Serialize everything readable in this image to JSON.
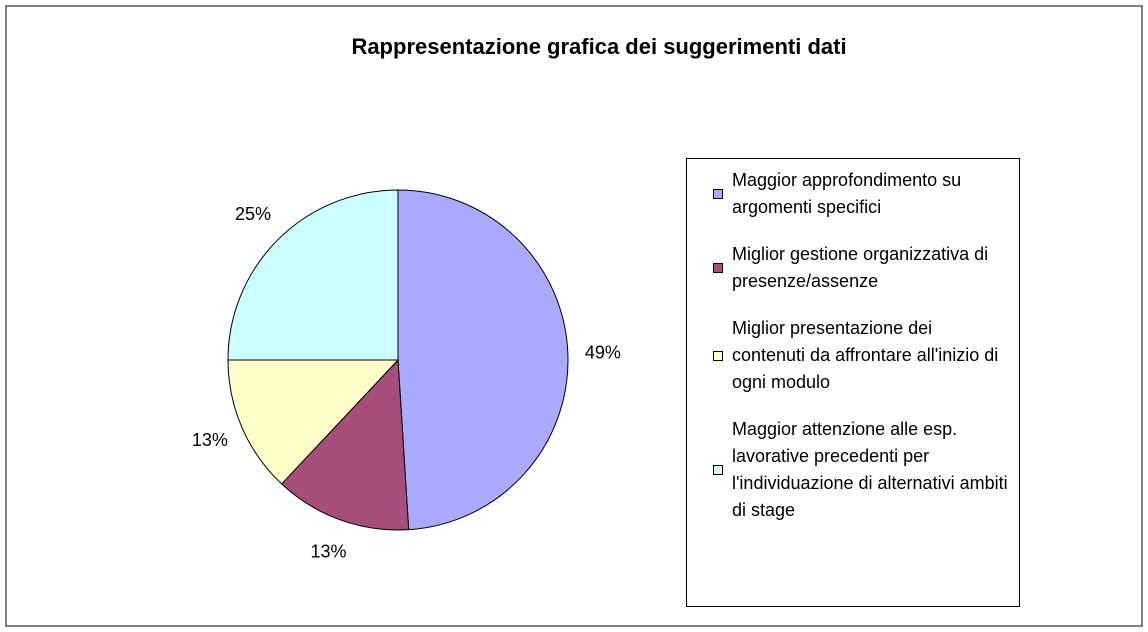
{
  "chart_data": {
    "type": "pie",
    "title": "Rappresentazione grafica dei suggerimenti dati",
    "categories": [
      "Maggior approfondimento su argomenti specifici",
      "Miglior  gestione organizzativa di presenze/assenze",
      "Miglior presentazione dei contenuti da affrontare all'inizio di ogni modulo",
      "Maggior attenzione alle esp. lavorative precedenti per l'individuazione di alternativi ambiti di stage"
    ],
    "values": [
      49,
      13,
      13,
      25
    ],
    "value_labels": [
      "49%",
      "13%",
      "13%",
      "25%"
    ],
    "colors": [
      "#aaaaff",
      "#a64d79",
      "#ffffcc",
      "#ccffff"
    ],
    "legend": "right"
  }
}
